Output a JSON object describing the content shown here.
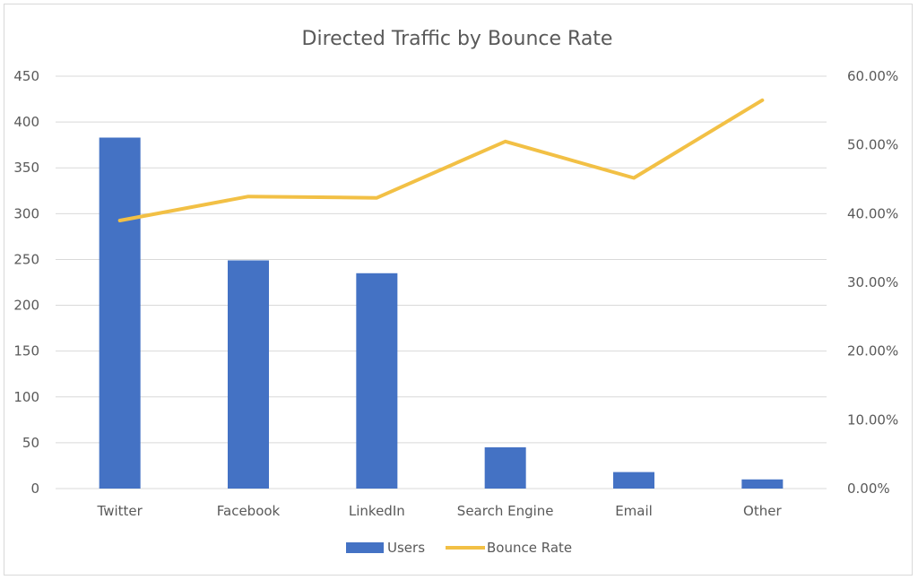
{
  "chart_data": {
    "type": "bar",
    "title": "Directed Traffic by Bounce Rate",
    "categories": [
      "Twitter",
      "Facebook",
      "LinkedIn",
      "Search Engine",
      "Email",
      "Other"
    ],
    "series": [
      {
        "name": "Users",
        "type": "bar",
        "axis": "left",
        "values": [
          383,
          249,
          235,
          45,
          18,
          10
        ]
      },
      {
        "name": "Bounce Rate",
        "type": "line",
        "axis": "right",
        "values": [
          39.0,
          42.5,
          42.3,
          50.5,
          45.2,
          56.5
        ]
      }
    ],
    "y_left": {
      "ylim": [
        0,
        450
      ],
      "ticks": [
        "0",
        "50",
        "100",
        "150",
        "200",
        "250",
        "300",
        "350",
        "400",
        "450"
      ]
    },
    "y_right": {
      "ylim": [
        0,
        60
      ],
      "ticks": [
        "0.00%",
        "10.00%",
        "20.00%",
        "30.00%",
        "40.00%",
        "50.00%",
        "60.00%"
      ]
    },
    "grid": true,
    "legend": "bottom",
    "colors": {
      "bars": "#4472c4",
      "line": "#f2c045",
      "grid": "#d9d9d9",
      "text": "#595959"
    }
  }
}
